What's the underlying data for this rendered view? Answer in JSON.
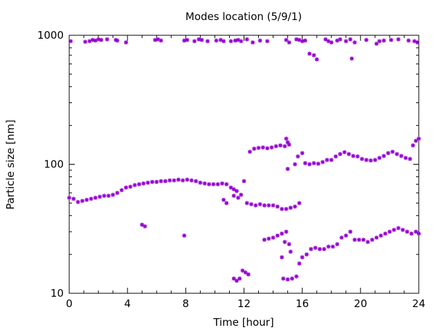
{
  "chart_data": {
    "type": "scatter",
    "title": "Modes location (5/9/1)",
    "xlabel": "Time [hour]",
    "ylabel": "Particle size [nm]",
    "xlim": [
      0,
      24
    ],
    "ylim": [
      10,
      1000
    ],
    "yscale": "log",
    "xticks": [
      0,
      4,
      8,
      12,
      16,
      20,
      24
    ],
    "xtick_labels": [
      "0",
      "4",
      "8",
      "12",
      "16",
      "20",
      "24"
    ],
    "yticks": [
      10,
      100,
      1000
    ],
    "ytick_labels": [
      "10",
      "100",
      "1000"
    ],
    "marker_color": "#9400D3",
    "marker": "asterisk",
    "grid": false,
    "legend": "none",
    "series": [
      {
        "points": [
          [
            0.1,
            900
          ],
          [
            1.1,
            890
          ],
          [
            1.4,
            900
          ],
          [
            1.6,
            920
          ],
          [
            1.8,
            910
          ],
          [
            2.0,
            930
          ],
          [
            2.2,
            920
          ],
          [
            2.6,
            930
          ],
          [
            3.2,
            920
          ],
          [
            3.3,
            910
          ],
          [
            3.9,
            880
          ],
          [
            5.9,
            920
          ],
          [
            6.1,
            930
          ],
          [
            6.3,
            910
          ],
          [
            7.9,
            910
          ],
          [
            8.1,
            920
          ],
          [
            8.6,
            900
          ],
          [
            8.9,
            930
          ],
          [
            9.1,
            920
          ],
          [
            9.5,
            900
          ],
          [
            10.1,
            910
          ],
          [
            10.4,
            920
          ],
          [
            10.6,
            900
          ],
          [
            11.1,
            900
          ],
          [
            11.4,
            910
          ],
          [
            11.6,
            920
          ],
          [
            11.8,
            900
          ],
          [
            12.2,
            930
          ],
          [
            12.6,
            880
          ],
          [
            13.1,
            910
          ],
          [
            13.6,
            900
          ],
          [
            14.9,
            920
          ],
          [
            15.1,
            880
          ],
          [
            15.6,
            930
          ],
          [
            15.8,
            920
          ],
          [
            16.0,
            900
          ],
          [
            16.2,
            910
          ],
          [
            16.5,
            720
          ],
          [
            16.8,
            700
          ],
          [
            17.0,
            650
          ],
          [
            17.6,
            930
          ],
          [
            17.8,
            900
          ],
          [
            18.0,
            880
          ],
          [
            18.4,
            910
          ],
          [
            18.6,
            930
          ],
          [
            19.0,
            900
          ],
          [
            19.3,
            930
          ],
          [
            19.6,
            880
          ],
          [
            19.4,
            660
          ],
          [
            20.4,
            920
          ],
          [
            21.1,
            860
          ],
          [
            21.3,
            900
          ],
          [
            21.6,
            910
          ],
          [
            22.1,
            920
          ],
          [
            22.6,
            930
          ],
          [
            23.3,
            910
          ],
          [
            23.7,
            900
          ],
          [
            23.9,
            880
          ]
        ]
      },
      {
        "points": [
          [
            0.0,
            55
          ],
          [
            0.3,
            54
          ],
          [
            0.6,
            51
          ],
          [
            0.9,
            52
          ],
          [
            1.2,
            53
          ],
          [
            1.5,
            54
          ],
          [
            1.8,
            55
          ],
          [
            2.1,
            56
          ],
          [
            2.4,
            57
          ],
          [
            2.7,
            57
          ],
          [
            3.0,
            58
          ],
          [
            3.3,
            60
          ],
          [
            3.6,
            63
          ],
          [
            3.9,
            66
          ],
          [
            4.2,
            67
          ],
          [
            4.5,
            69
          ],
          [
            4.8,
            70
          ],
          [
            5.1,
            71
          ],
          [
            5.4,
            72
          ],
          [
            5.7,
            73
          ],
          [
            6.0,
            73
          ],
          [
            6.3,
            74
          ],
          [
            6.6,
            74
          ],
          [
            6.9,
            75
          ],
          [
            7.2,
            75
          ],
          [
            7.5,
            76
          ],
          [
            7.8,
            75
          ],
          [
            8.1,
            76
          ],
          [
            8.4,
            75
          ],
          [
            8.7,
            74
          ],
          [
            9.0,
            72
          ],
          [
            9.3,
            71
          ],
          [
            9.6,
            70
          ],
          [
            9.9,
            70
          ],
          [
            10.2,
            70
          ],
          [
            10.5,
            71
          ],
          [
            10.8,
            70
          ],
          [
            11.1,
            66
          ],
          [
            11.3,
            64
          ],
          [
            11.5,
            62
          ],
          [
            11.8,
            58
          ],
          [
            12.0,
            74
          ],
          [
            12.2,
            50
          ],
          [
            12.5,
            49
          ],
          [
            12.8,
            48
          ],
          [
            13.1,
            49
          ],
          [
            13.4,
            48
          ],
          [
            13.7,
            48
          ],
          [
            14.0,
            48
          ],
          [
            14.3,
            47
          ],
          [
            14.6,
            45
          ],
          [
            14.9,
            45
          ],
          [
            15.2,
            46
          ],
          [
            15.5,
            47
          ],
          [
            15.8,
            50
          ],
          [
            10.6,
            53
          ],
          [
            10.8,
            50
          ],
          [
            11.3,
            57
          ],
          [
            11.6,
            55
          ]
        ]
      },
      {
        "points": [
          [
            12.4,
            125
          ],
          [
            12.7,
            132
          ],
          [
            13.0,
            134
          ],
          [
            13.3,
            135
          ],
          [
            13.6,
            133
          ],
          [
            13.9,
            135
          ],
          [
            14.2,
            138
          ],
          [
            14.5,
            140
          ],
          [
            14.8,
            138
          ],
          [
            15.1,
            142
          ],
          [
            14.9,
            158
          ],
          [
            15.0,
            148
          ],
          [
            15.0,
            92
          ],
          [
            15.5,
            100
          ],
          [
            15.7,
            115
          ],
          [
            16.0,
            122
          ],
          [
            16.2,
            102
          ],
          [
            16.5,
            100
          ],
          [
            16.8,
            102
          ],
          [
            17.1,
            101
          ],
          [
            17.4,
            104
          ],
          [
            17.7,
            108
          ],
          [
            18.0,
            108
          ],
          [
            18.3,
            115
          ],
          [
            18.6,
            120
          ],
          [
            18.9,
            124
          ],
          [
            19.2,
            120
          ],
          [
            19.5,
            116
          ],
          [
            19.8,
            115
          ],
          [
            20.1,
            110
          ],
          [
            20.4,
            108
          ],
          [
            20.7,
            107
          ],
          [
            21.0,
            108
          ],
          [
            21.3,
            112
          ],
          [
            21.6,
            116
          ],
          [
            21.9,
            122
          ],
          [
            22.2,
            125
          ],
          [
            22.5,
            120
          ],
          [
            22.8,
            116
          ],
          [
            23.1,
            112
          ],
          [
            23.4,
            110
          ],
          [
            23.6,
            140
          ],
          [
            23.8,
            152
          ],
          [
            24.0,
            158
          ]
        ]
      },
      {
        "points": [
          [
            5.0,
            34
          ],
          [
            5.2,
            33
          ],
          [
            7.9,
            28
          ],
          [
            11.3,
            13
          ],
          [
            11.5,
            12.5
          ],
          [
            11.7,
            13
          ],
          [
            11.9,
            15
          ],
          [
            12.1,
            14.5
          ],
          [
            12.3,
            14
          ],
          [
            13.4,
            26
          ],
          [
            13.7,
            26.5
          ],
          [
            14.0,
            27
          ],
          [
            14.3,
            28
          ],
          [
            14.6,
            29
          ],
          [
            14.9,
            30
          ],
          [
            14.6,
            19
          ],
          [
            14.8,
            25
          ],
          [
            15.1,
            24
          ],
          [
            15.2,
            21
          ],
          [
            14.7,
            13
          ],
          [
            15.0,
            12.8
          ],
          [
            15.3,
            13
          ],
          [
            15.6,
            13.5
          ],
          [
            15.8,
            17
          ],
          [
            16.0,
            19
          ],
          [
            16.3,
            20
          ],
          [
            16.6,
            22
          ],
          [
            16.9,
            22.5
          ],
          [
            17.2,
            22
          ],
          [
            17.5,
            22
          ],
          [
            17.8,
            23
          ],
          [
            18.1,
            23
          ],
          [
            18.4,
            24
          ],
          [
            18.7,
            27
          ],
          [
            19.0,
            28
          ],
          [
            19.3,
            30
          ],
          [
            19.6,
            26
          ],
          [
            19.9,
            26
          ],
          [
            20.2,
            26
          ],
          [
            20.5,
            25
          ],
          [
            20.8,
            26
          ],
          [
            21.1,
            27
          ],
          [
            21.4,
            28
          ],
          [
            21.7,
            29
          ],
          [
            22.0,
            30
          ],
          [
            22.3,
            31
          ],
          [
            22.6,
            32
          ],
          [
            22.9,
            31
          ],
          [
            23.2,
            30
          ],
          [
            23.5,
            29
          ],
          [
            23.8,
            30
          ],
          [
            24.0,
            29
          ]
        ]
      }
    ]
  }
}
